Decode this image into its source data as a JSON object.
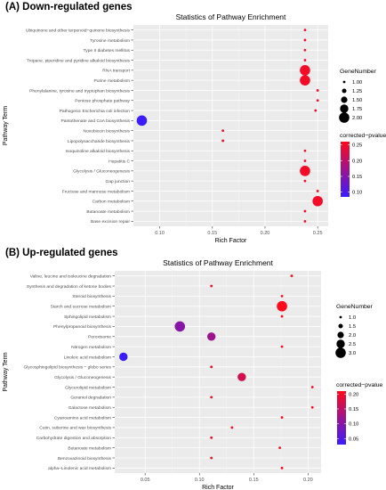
{
  "panels": [
    {
      "heading": "(A) Down-regulated genes"
    },
    {
      "heading": "(B) Up-regulated genes"
    }
  ],
  "chart_data": [
    {
      "type": "scatter",
      "title": "Statistics of Pathway Enrichment",
      "xlabel": "Rich Factor",
      "ylabel": "Pathway Term",
      "xlim": [
        0.075,
        0.26
      ],
      "x_ticks": [
        0.1,
        0.15,
        0.2,
        0.25
      ],
      "x_tick_labels": [
        "0.10",
        "0.15",
        "0.20",
        "0.25"
      ],
      "grid": true,
      "size_legend": {
        "title": "GeneNumber",
        "values": [
          1.0,
          1.25,
          1.5,
          1.75,
          2.0
        ],
        "labels": [
          "1.00",
          "1.25",
          "1.50",
          "1.75",
          "2.00"
        ],
        "range": [
          1,
          2
        ]
      },
      "color_legend": {
        "title": "corrected−pvalue",
        "range": [
          0.085,
          0.26
        ],
        "ticks": [
          0.1,
          0.15,
          0.2,
          0.25
        ],
        "tick_labels": [
          "0.10",
          "0.15",
          "0.20",
          "0.25"
        ],
        "low_color": "#3a1cff",
        "high_color": "#ff0a1a"
      },
      "legend_position": "right",
      "points": [
        {
          "term": "Ubiquinone and other terpenoid−quinone biosynthesis",
          "x": 0.238,
          "size": 1,
          "p": 0.25
        },
        {
          "term": "Tyrosine metabolism",
          "x": 0.238,
          "size": 1,
          "p": 0.25
        },
        {
          "term": "Type II diabetes mellitus",
          "x": 0.238,
          "size": 1,
          "p": 0.25
        },
        {
          "term": "Tropane, piperidine and pyridine alkaloid biosynthesis",
          "x": 0.238,
          "size": 1,
          "p": 0.25
        },
        {
          "term": "RNA transport",
          "x": 0.238,
          "size": 2,
          "p": 0.25
        },
        {
          "term": "Purine metabolism",
          "x": 0.238,
          "size": 2,
          "p": 0.25
        },
        {
          "term": "Phenylalanine, tyrosine and tryptophan biosynthesis",
          "x": 0.25,
          "size": 1,
          "p": 0.25
        },
        {
          "term": "Pentose phosphate pathway",
          "x": 0.25,
          "size": 1,
          "p": 0.25
        },
        {
          "term": "Pathogenic Escherichia coli infection",
          "x": 0.248,
          "size": 1,
          "p": 0.25
        },
        {
          "term": "Pantothenate and CoA biosynthesis",
          "x": 0.083,
          "size": 2,
          "p": 0.085
        },
        {
          "term": "Novobiocin biosynthesis",
          "x": 0.16,
          "size": 1,
          "p": 0.25
        },
        {
          "term": "Lipopolysaccharide biosynthesis",
          "x": 0.16,
          "size": 1,
          "p": 0.25
        },
        {
          "term": "Isoquinoline alkaloid biosynthesis",
          "x": 0.238,
          "size": 1,
          "p": 0.25
        },
        {
          "term": "Hepatitis C",
          "x": 0.238,
          "size": 1,
          "p": 0.25
        },
        {
          "term": "Glycolysis / Gluconeogenesis",
          "x": 0.238,
          "size": 2,
          "p": 0.25
        },
        {
          "term": "Gap junction",
          "x": 0.238,
          "size": 1,
          "p": 0.25
        },
        {
          "term": "Fructose and mannose metabolism",
          "x": 0.25,
          "size": 1,
          "p": 0.25
        },
        {
          "term": "Carbon metabolism",
          "x": 0.25,
          "size": 2,
          "p": 0.25
        },
        {
          "term": "Butanoate metabolism",
          "x": 0.238,
          "size": 1,
          "p": 0.25
        },
        {
          "term": "Base excision repair",
          "x": 0.238,
          "size": 1,
          "p": 0.25
        }
      ]
    },
    {
      "type": "scatter",
      "title": "Statistics of Pathway Enrichment",
      "xlabel": "Rich Factor",
      "ylabel": "Pathway Term",
      "xlim": [
        0.022,
        0.212
      ],
      "x_ticks": [
        0.05,
        0.1,
        0.15,
        0.2
      ],
      "x_tick_labels": [
        "0.05",
        "0.10",
        "0.15",
        "0.20"
      ],
      "grid": true,
      "size_legend": {
        "title": "GeneNumber",
        "values": [
          1.0,
          1.5,
          2.0,
          2.5,
          3.0
        ],
        "labels": [
          "1.0",
          "1.5",
          "2.0",
          "2.5",
          "3.0"
        ],
        "range": [
          1,
          3
        ]
      },
      "color_legend": {
        "title": "corrected−pvalue",
        "range": [
          0.03,
          0.21
        ],
        "ticks": [
          0.05,
          0.1,
          0.15,
          0.2
        ],
        "tick_labels": [
          "0.05",
          "0.10",
          "0.15",
          "0.20"
        ],
        "low_color": "#3a1cff",
        "high_color": "#ff0a1a"
      },
      "legend_position": "right",
      "points": [
        {
          "term": "Valine, leucine and isoleucine degradation",
          "x": 0.185,
          "size": 1,
          "p": 0.21
        },
        {
          "term": "Synthesis and degradation of ketone bodies",
          "x": 0.111,
          "size": 1,
          "p": 0.21
        },
        {
          "term": "Steroid biosynthesis",
          "x": 0.176,
          "size": 1,
          "p": 0.21
        },
        {
          "term": "Starch and sucrose metabolism",
          "x": 0.176,
          "size": 3,
          "p": 0.21
        },
        {
          "term": "Sphingolipid metabolism",
          "x": 0.176,
          "size": 1,
          "p": 0.21
        },
        {
          "term": "Phenylpropanoid biosynthesis",
          "x": 0.082,
          "size": 3,
          "p": 0.1
        },
        {
          "term": "Peroxisome",
          "x": 0.111,
          "size": 2.5,
          "p": 0.12
        },
        {
          "term": "Nitrogen metabolism",
          "x": 0.176,
          "size": 1,
          "p": 0.21
        },
        {
          "term": "Linoleic acid metabolism",
          "x": 0.03,
          "size": 2.5,
          "p": 0.03
        },
        {
          "term": "Glycosphingolipid biosynthesis − globo series",
          "x": 0.111,
          "size": 1,
          "p": 0.21
        },
        {
          "term": "Glycolysis / Gluconeogenesis",
          "x": 0.139,
          "size": 2.5,
          "p": 0.17
        },
        {
          "term": "Glycerolipid metabolism",
          "x": 0.204,
          "size": 1,
          "p": 0.21
        },
        {
          "term": "Geraniol degradation",
          "x": 0.111,
          "size": 1,
          "p": 0.21
        },
        {
          "term": "Galactose metabolism",
          "x": 0.204,
          "size": 1,
          "p": 0.21
        },
        {
          "term": "Cyanoamino acid metabolism",
          "x": 0.176,
          "size": 1,
          "p": 0.21
        },
        {
          "term": "Cutin, suberine and wax biosynthesis",
          "x": 0.13,
          "size": 1,
          "p": 0.21
        },
        {
          "term": "Carbohydrate digestion and absorption",
          "x": 0.111,
          "size": 1,
          "p": 0.21
        },
        {
          "term": "Butanoate metabolism",
          "x": 0.174,
          "size": 1,
          "p": 0.21
        },
        {
          "term": "Benzoxazinoid biosynthesis",
          "x": 0.111,
          "size": 1,
          "p": 0.21
        },
        {
          "term": "alpha−Linolenic acid metabolism",
          "x": 0.176,
          "size": 1,
          "p": 0.21
        }
      ]
    }
  ]
}
